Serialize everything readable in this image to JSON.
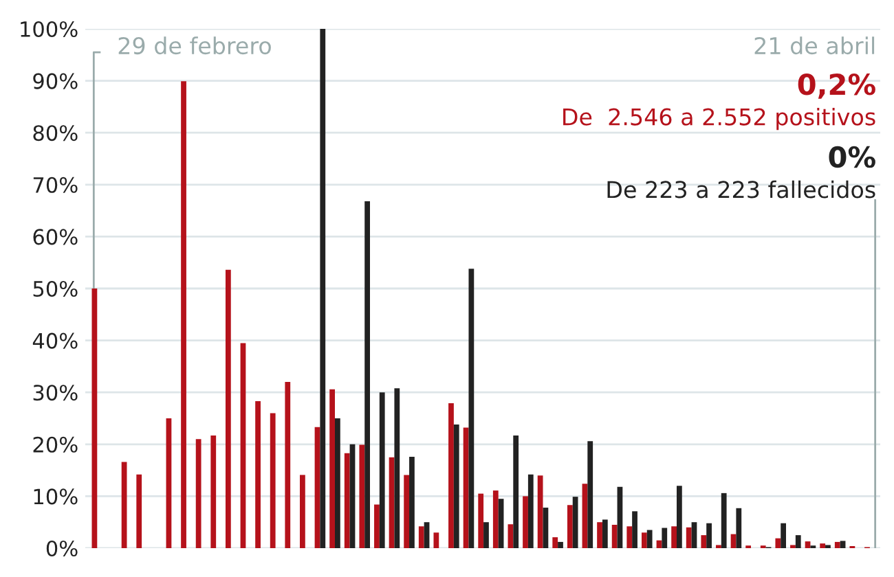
{
  "chart_data": {
    "type": "bar",
    "categories": [
      null,
      null,
      null,
      null,
      null,
      null,
      null,
      null,
      null,
      null,
      null,
      null,
      null,
      null,
      null,
      null,
      null,
      null,
      null,
      null,
      null,
      null,
      null,
      null,
      null,
      null,
      null,
      null,
      null,
      null,
      null,
      null,
      null,
      null,
      null,
      null,
      null,
      null,
      null,
      null,
      null,
      null,
      null,
      null,
      null,
      null,
      null,
      null,
      null,
      null,
      null,
      null,
      null
    ],
    "series": [
      {
        "color": "#b5121b",
        "values": [
          50,
          0,
          16.6,
          14.2,
          0,
          25,
          89.9,
          21,
          21.7,
          53.6,
          39.5,
          28.3,
          26,
          32,
          14.1,
          23.3,
          30.6,
          18.3,
          19.9,
          8.4,
          17.5,
          14.1,
          4.2,
          3,
          27.9,
          23.2,
          10.5,
          11.1,
          4.6,
          10,
          14,
          2.1,
          8.3,
          12.4,
          5,
          4.5,
          4.2,
          3,
          1.5,
          4.2,
          4,
          2.5,
          0.6,
          2.7,
          0.5,
          0.5,
          1.9,
          0.6,
          1.3,
          0.9,
          1.2,
          0.4,
          0.2
        ]
      },
      {
        "color": "#222222",
        "values": [
          null,
          null,
          null,
          null,
          null,
          null,
          null,
          null,
          null,
          null,
          null,
          null,
          null,
          null,
          null,
          100,
          25,
          20,
          66.8,
          30,
          30.8,
          17.6,
          5,
          0,
          23.8,
          53.8,
          5,
          9.5,
          21.7,
          14.2,
          7.8,
          1.2,
          9.9,
          20.6,
          5.5,
          11.8,
          7.1,
          3.5,
          3.9,
          12,
          5,
          4.8,
          10.6,
          7.7,
          0,
          0.2,
          4.8,
          2.5,
          0.5,
          0.6,
          1.4,
          0,
          0
        ]
      }
    ],
    "ylim": [
      0,
      100
    ],
    "yticks": [
      {
        "value": 0,
        "label": "0%"
      },
      {
        "value": 10,
        "label": "10%"
      },
      {
        "value": 20,
        "label": "20%"
      },
      {
        "value": 30,
        "label": "30%"
      },
      {
        "value": 40,
        "label": "40%"
      },
      {
        "value": 50,
        "label": "50%"
      },
      {
        "value": 60,
        "label": "60%"
      },
      {
        "value": 70,
        "label": "70%"
      },
      {
        "value": 80,
        "label": "80%"
      },
      {
        "value": 90,
        "label": "90%"
      },
      {
        "value": 100,
        "label": "100%"
      }
    ],
    "grid": "y",
    "annotations": [
      "29 de febrero",
      "21 de abril",
      "0,2%",
      "De  2.546 a 2.552 positivos",
      "0%",
      "De 223 a 223 fallecidos"
    ]
  }
}
